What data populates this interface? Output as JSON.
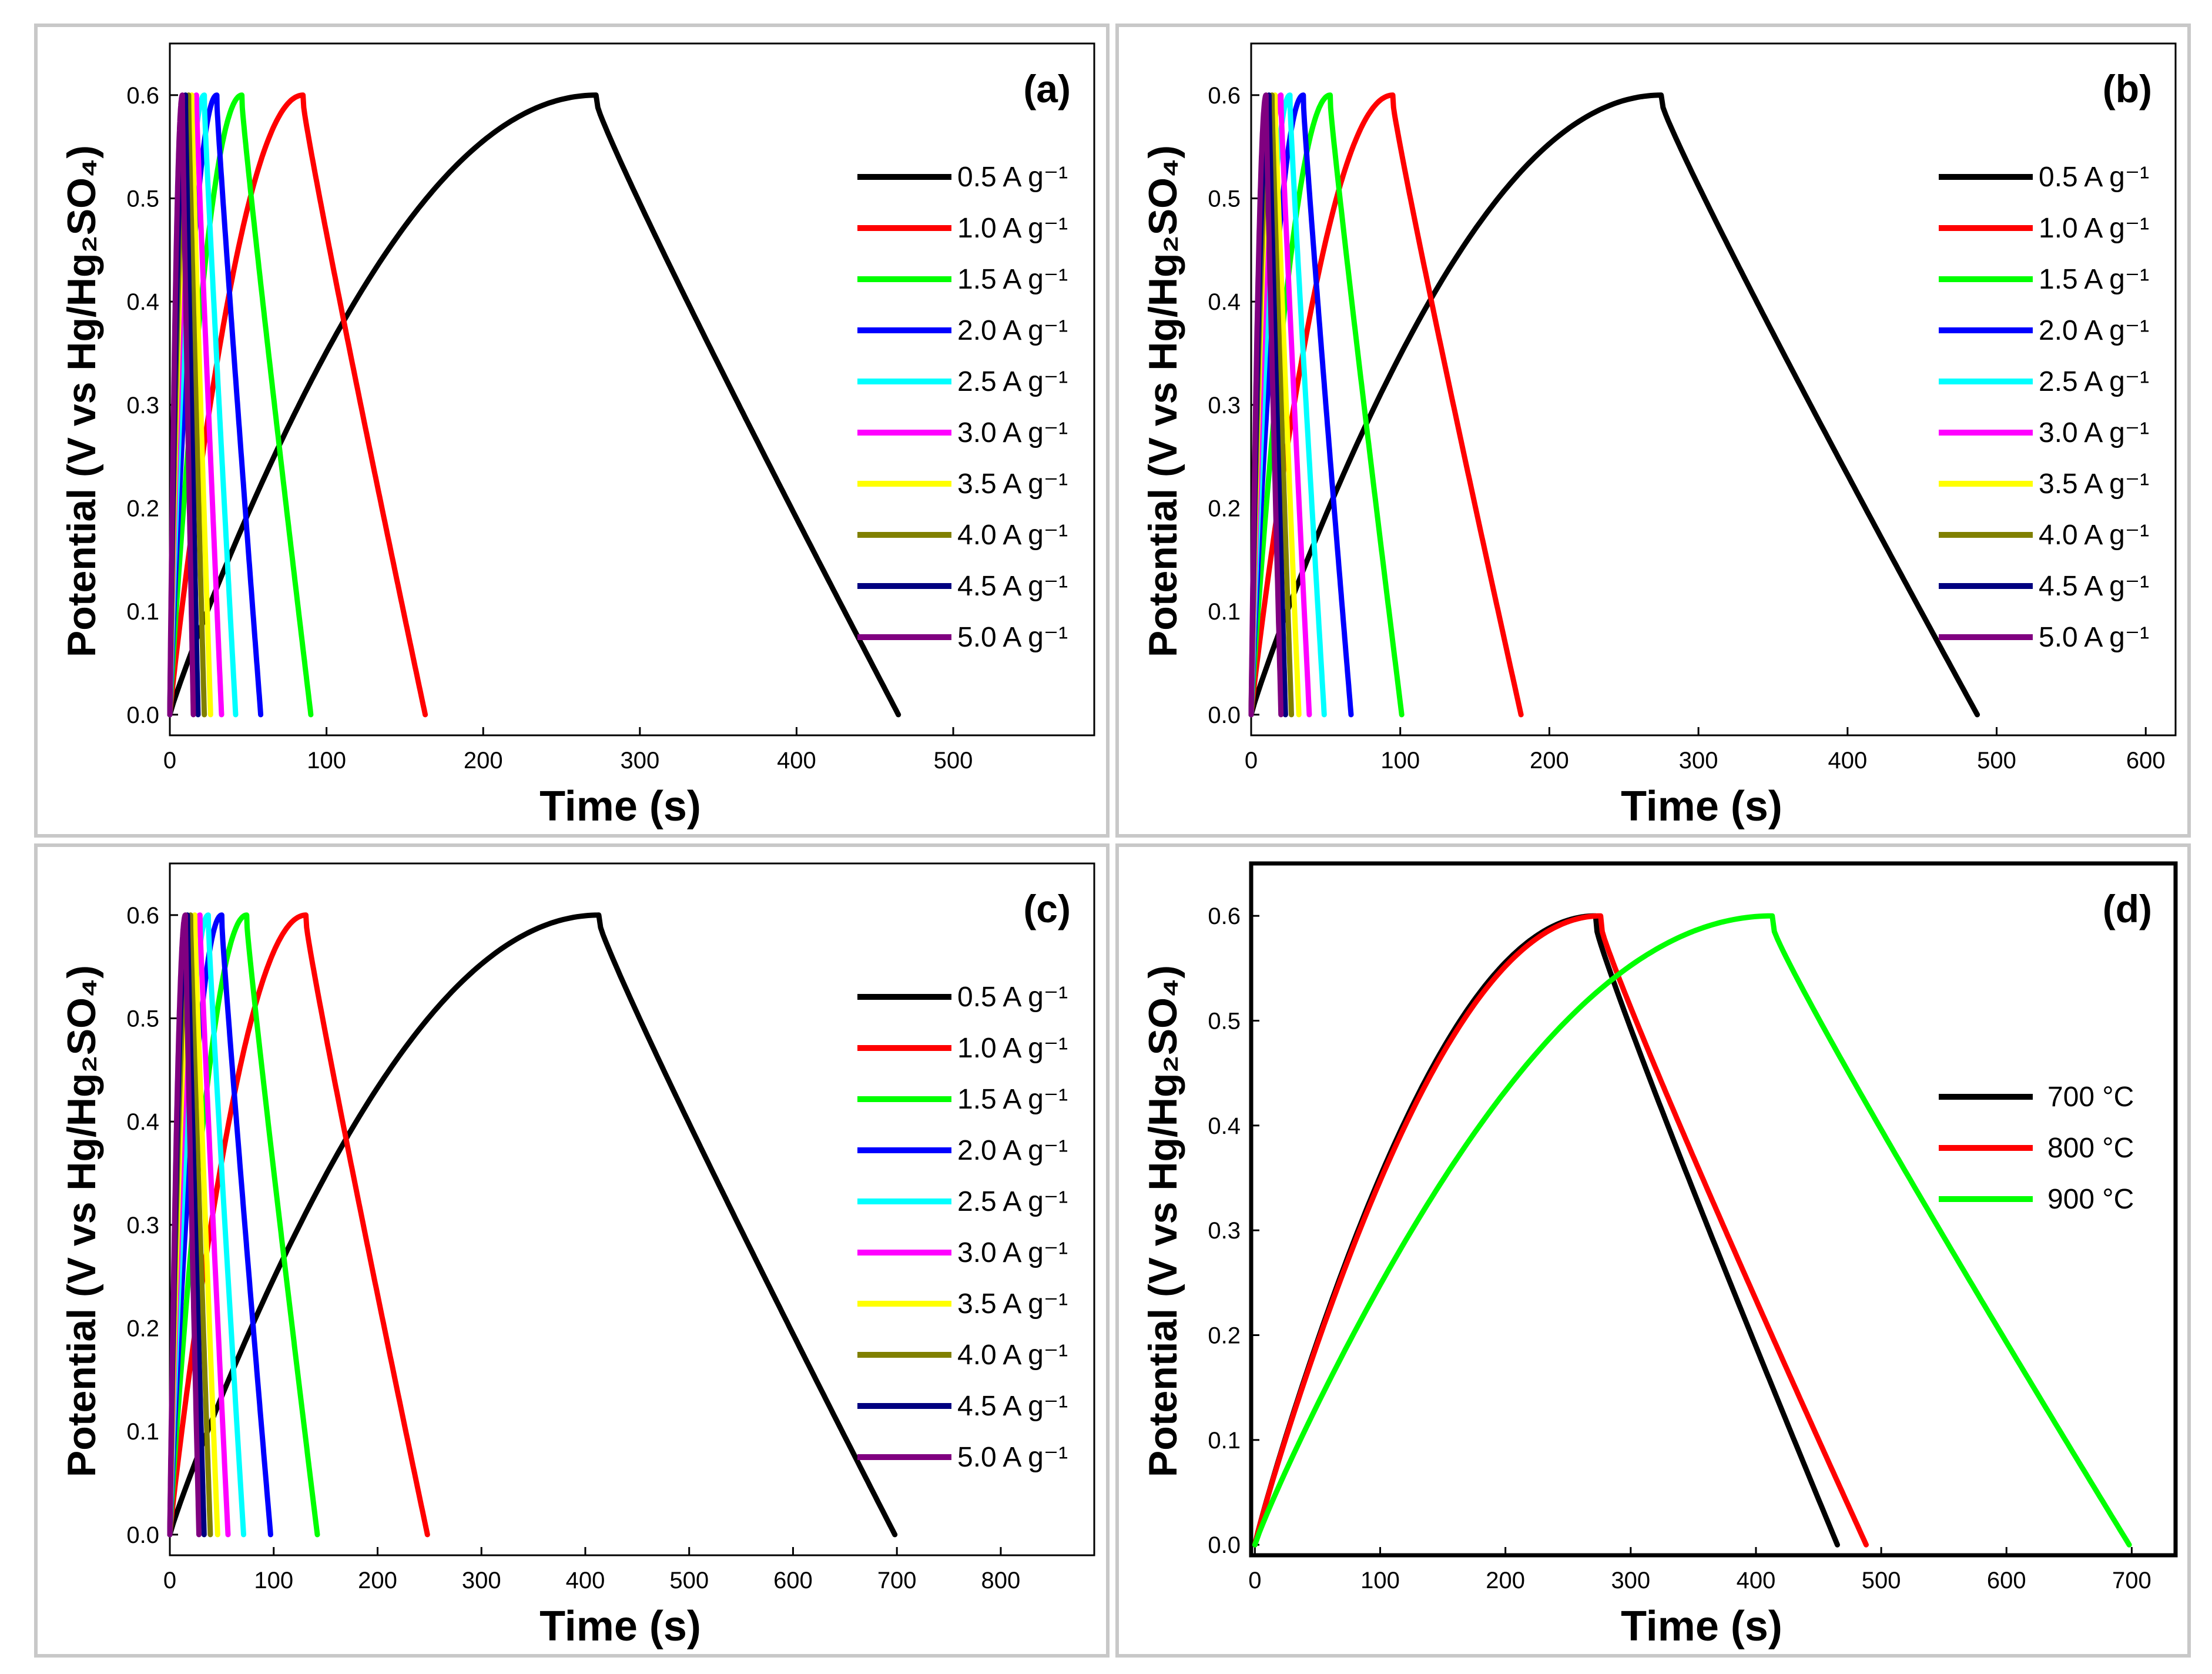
{
  "chart_data": [
    {
      "type": "line",
      "panel_label": "(a)",
      "xlabel": "Time (s)",
      "ylabel": "Potential (V vs Hg/Hg₂SO₄)",
      "xlim": [
        0,
        590
      ],
      "ylim": [
        -0.02,
        0.65
      ],
      "xticks": [
        0,
        100,
        200,
        300,
        400,
        500
      ],
      "yticks": [
        0.0,
        0.1,
        0.2,
        0.3,
        0.4,
        0.5,
        0.6
      ],
      "legend_position": "right",
      "series": [
        {
          "name": "0.5 A g⁻¹",
          "color": "#000000",
          "t_peak": 272,
          "t_end": 465
        },
        {
          "name": "1.0 A g⁻¹",
          "color": "#ff0000",
          "t_peak": 85,
          "t_end": 163
        },
        {
          "name": "1.5 A g⁻¹",
          "color": "#00ff00",
          "t_peak": 46,
          "t_end": 90
        },
        {
          "name": "2.0 A g⁻¹",
          "color": "#0000ff",
          "t_peak": 30,
          "t_end": 58
        },
        {
          "name": "2.5 A g⁻¹",
          "color": "#00ffff",
          "t_peak": 22,
          "t_end": 42
        },
        {
          "name": "3.0 A g⁻¹",
          "color": "#ff00ff",
          "t_peak": 17,
          "t_end": 33
        },
        {
          "name": "3.5 A g⁻¹",
          "color": "#ffff00",
          "t_peak": 14,
          "t_end": 26
        },
        {
          "name": "4.0 A g⁻¹",
          "color": "#808000",
          "t_peak": 12,
          "t_end": 22
        },
        {
          "name": "4.5 A g⁻¹",
          "color": "#000080",
          "t_peak": 10,
          "t_end": 18
        },
        {
          "name": "5.0 A g⁻¹",
          "color": "#800080",
          "t_peak": 8,
          "t_end": 15
        }
      ]
    },
    {
      "type": "line",
      "panel_label": "(b)",
      "xlabel": "Time (s)",
      "ylabel": "Potential (V vs Hg/Hg₂SO₄)",
      "xlim": [
        0,
        620
      ],
      "ylim": [
        -0.02,
        0.65
      ],
      "xticks": [
        0,
        100,
        200,
        300,
        400,
        500,
        600
      ],
      "yticks": [
        0.0,
        0.1,
        0.2,
        0.3,
        0.4,
        0.5,
        0.6
      ],
      "legend_position": "right",
      "series": [
        {
          "name": "0.5 A g⁻¹",
          "color": "#000000",
          "t_peak": 275,
          "t_end": 487
        },
        {
          "name": "1.0 A g⁻¹",
          "color": "#ff0000",
          "t_peak": 95,
          "t_end": 181
        },
        {
          "name": "1.5 A g⁻¹",
          "color": "#00ff00",
          "t_peak": 53,
          "t_end": 101
        },
        {
          "name": "2.0 A g⁻¹",
          "color": "#0000ff",
          "t_peak": 35,
          "t_end": 67
        },
        {
          "name": "2.5 A g⁻¹",
          "color": "#00ffff",
          "t_peak": 26,
          "t_end": 49
        },
        {
          "name": "3.0 A g⁻¹",
          "color": "#ff00ff",
          "t_peak": 20,
          "t_end": 39
        },
        {
          "name": "3.5 A g⁻¹",
          "color": "#ffff00",
          "t_peak": 16,
          "t_end": 32
        },
        {
          "name": "4.0 A g⁻¹",
          "color": "#808000",
          "t_peak": 14,
          "t_end": 27
        },
        {
          "name": "4.5 A g⁻¹",
          "color": "#000080",
          "t_peak": 12,
          "t_end": 23
        },
        {
          "name": "5.0 A g⁻¹",
          "color": "#800080",
          "t_peak": 10,
          "t_end": 20
        }
      ]
    },
    {
      "type": "line",
      "panel_label": "(c)",
      "xlabel": "Time (s)",
      "ylabel": "Potential (V vs Hg/Hg₂SO₄)",
      "xlim": [
        0,
        890
      ],
      "ylim": [
        -0.02,
        0.65
      ],
      "xticks": [
        0,
        100,
        200,
        300,
        400,
        500,
        600,
        700,
        800
      ],
      "yticks": [
        0.0,
        0.1,
        0.2,
        0.3,
        0.4,
        0.5,
        0.6
      ],
      "legend_position": "right",
      "series": [
        {
          "name": "0.5 A g⁻¹",
          "color": "#000000",
          "t_peak": 413,
          "t_end": 698
        },
        {
          "name": "1.0 A g⁻¹",
          "color": "#ff0000",
          "t_peak": 131,
          "t_end": 248
        },
        {
          "name": "1.5 A g⁻¹",
          "color": "#00ff00",
          "t_peak": 74,
          "t_end": 142
        },
        {
          "name": "2.0 A g⁻¹",
          "color": "#0000ff",
          "t_peak": 50,
          "t_end": 97
        },
        {
          "name": "2.5 A g⁻¹",
          "color": "#00ffff",
          "t_peak": 37,
          "t_end": 71
        },
        {
          "name": "3.0 A g⁻¹",
          "color": "#ff00ff",
          "t_peak": 29,
          "t_end": 56
        },
        {
          "name": "3.5 A g⁻¹",
          "color": "#ffff00",
          "t_peak": 24,
          "t_end": 46
        },
        {
          "name": "4.0 A g⁻¹",
          "color": "#808000",
          "t_peak": 20,
          "t_end": 39
        },
        {
          "name": "4.5 A g⁻¹",
          "color": "#000080",
          "t_peak": 17,
          "t_end": 33
        },
        {
          "name": "5.0 A g⁻¹",
          "color": "#800080",
          "t_peak": 15,
          "t_end": 28
        }
      ]
    },
    {
      "type": "line",
      "panel_label": "(d)",
      "xlabel": "Time (s)",
      "ylabel": "Potential (V vs Hg/Hg₂SO₄)",
      "xlim": [
        -3,
        735
      ],
      "ylim": [
        -0.01,
        0.65
      ],
      "xticks": [
        0,
        100,
        200,
        300,
        400,
        500,
        600,
        700
      ],
      "yticks": [
        0.0,
        0.1,
        0.2,
        0.3,
        0.4,
        0.5,
        0.6
      ],
      "legend_position": "center-right",
      "series": [
        {
          "name": "700 °C",
          "color": "#000000",
          "t_peak": 272,
          "t_end": 465
        },
        {
          "name": "800 °C",
          "color": "#ff0000",
          "t_peak": 276,
          "t_end": 488
        },
        {
          "name": "900 °C",
          "color": "#00ff00",
          "t_peak": 413,
          "t_end": 698
        }
      ]
    }
  ]
}
